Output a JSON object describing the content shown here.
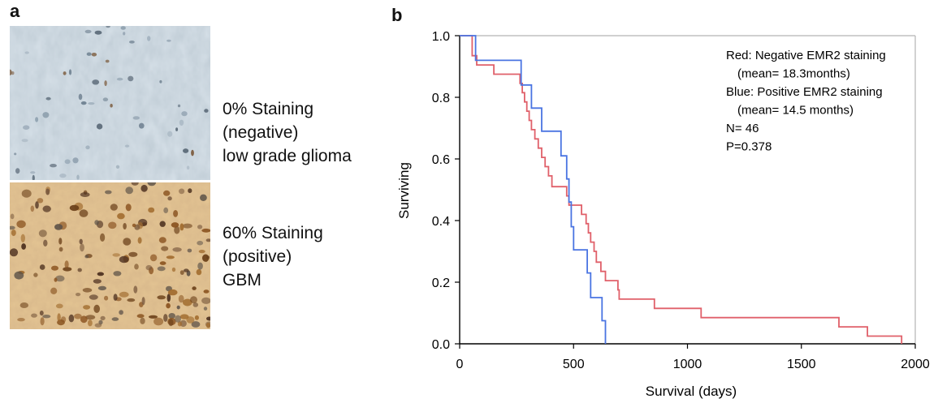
{
  "panel_a": {
    "letter": "a",
    "images": [
      {
        "caption_lines": [
          "0% Staining",
          "(negative)",
          "low grade glioma"
        ],
        "tone": "negative"
      },
      {
        "caption_lines": [
          "60% Staining",
          "(positive)",
          "GBM"
        ],
        "tone": "positive"
      }
    ]
  },
  "panel_b": {
    "letter": "b"
  },
  "colors": {
    "red": "#e0606a",
    "blue": "#4a74e2",
    "axis": "#000000",
    "frame": "#b4b4b4"
  },
  "chart_data": {
    "type": "line",
    "xlabel": "Survival (days)",
    "ylabel": "Surviving",
    "xlim": [
      0,
      2000
    ],
    "ylim": [
      0,
      1.0
    ],
    "x_ticks": [
      0,
      500,
      1000,
      1500,
      2000
    ],
    "y_ticks": [
      "0.0",
      "0.2",
      "0.4",
      "0.6",
      "0.8",
      "1.0"
    ],
    "annotations": [
      "Red: Negative EMR2 staining",
      "(mean= 18.3months)",
      "Blue: Positive EMR2 staining",
      "(mean= 14.5 months)",
      "N= 46",
      "P=0.378"
    ],
    "series": [
      {
        "color": "red",
        "points": [
          [
            0,
            1.0
          ],
          [
            55,
            1.0
          ],
          [
            55,
            0.935
          ],
          [
            75,
            0.935
          ],
          [
            75,
            0.905
          ],
          [
            150,
            0.905
          ],
          [
            150,
            0.875
          ],
          [
            265,
            0.875
          ],
          [
            265,
            0.845
          ],
          [
            275,
            0.845
          ],
          [
            275,
            0.815
          ],
          [
            285,
            0.815
          ],
          [
            285,
            0.785
          ],
          [
            295,
            0.785
          ],
          [
            295,
            0.755
          ],
          [
            305,
            0.755
          ],
          [
            305,
            0.725
          ],
          [
            315,
            0.725
          ],
          [
            315,
            0.695
          ],
          [
            330,
            0.695
          ],
          [
            330,
            0.665
          ],
          [
            345,
            0.665
          ],
          [
            345,
            0.635
          ],
          [
            360,
            0.635
          ],
          [
            360,
            0.605
          ],
          [
            375,
            0.605
          ],
          [
            375,
            0.575
          ],
          [
            390,
            0.575
          ],
          [
            390,
            0.545
          ],
          [
            405,
            0.545
          ],
          [
            405,
            0.51
          ],
          [
            470,
            0.51
          ],
          [
            470,
            0.48
          ],
          [
            480,
            0.48
          ],
          [
            480,
            0.45
          ],
          [
            535,
            0.45
          ],
          [
            535,
            0.42
          ],
          [
            555,
            0.42
          ],
          [
            555,
            0.39
          ],
          [
            565,
            0.39
          ],
          [
            565,
            0.36
          ],
          [
            575,
            0.36
          ],
          [
            575,
            0.33
          ],
          [
            590,
            0.33
          ],
          [
            590,
            0.3
          ],
          [
            600,
            0.3
          ],
          [
            600,
            0.265
          ],
          [
            620,
            0.265
          ],
          [
            620,
            0.235
          ],
          [
            640,
            0.235
          ],
          [
            640,
            0.205
          ],
          [
            695,
            0.205
          ],
          [
            695,
            0.175
          ],
          [
            700,
            0.175
          ],
          [
            700,
            0.145
          ],
          [
            855,
            0.145
          ],
          [
            855,
            0.115
          ],
          [
            1060,
            0.115
          ],
          [
            1060,
            0.085
          ],
          [
            1665,
            0.085
          ],
          [
            1665,
            0.055
          ],
          [
            1790,
            0.055
          ],
          [
            1790,
            0.025
          ],
          [
            1940,
            0.025
          ],
          [
            1940,
            0.0
          ]
        ]
      },
      {
        "color": "blue",
        "points": [
          [
            0,
            1.0
          ],
          [
            70,
            1.0
          ],
          [
            70,
            0.92
          ],
          [
            270,
            0.92
          ],
          [
            270,
            0.84
          ],
          [
            315,
            0.84
          ],
          [
            315,
            0.765
          ],
          [
            360,
            0.765
          ],
          [
            360,
            0.69
          ],
          [
            445,
            0.69
          ],
          [
            445,
            0.61
          ],
          [
            470,
            0.61
          ],
          [
            470,
            0.535
          ],
          [
            480,
            0.535
          ],
          [
            480,
            0.46
          ],
          [
            490,
            0.46
          ],
          [
            490,
            0.38
          ],
          [
            500,
            0.38
          ],
          [
            500,
            0.305
          ],
          [
            560,
            0.305
          ],
          [
            560,
            0.23
          ],
          [
            575,
            0.23
          ],
          [
            575,
            0.15
          ],
          [
            625,
            0.15
          ],
          [
            625,
            0.075
          ],
          [
            640,
            0.075
          ],
          [
            640,
            0.0
          ]
        ]
      }
    ]
  }
}
